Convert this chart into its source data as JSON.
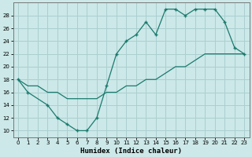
{
  "xlabel": "Humidex (Indice chaleur)",
  "xlim": [
    -0.5,
    23.5
  ],
  "ylim": [
    9,
    30
  ],
  "xticks": [
    0,
    1,
    2,
    3,
    4,
    5,
    6,
    7,
    8,
    9,
    10,
    11,
    12,
    13,
    14,
    15,
    16,
    17,
    18,
    19,
    20,
    21,
    22,
    23
  ],
  "yticks": [
    10,
    12,
    14,
    16,
    18,
    20,
    22,
    24,
    26,
    28
  ],
  "bg_color": "#cce8e8",
  "grid_color": "#aacfcf",
  "line_color": "#1a7a6e",
  "line1_x": [
    0,
    1,
    3,
    4,
    5,
    6,
    7,
    8,
    9,
    10,
    11,
    12,
    13,
    14,
    15,
    16,
    17,
    18,
    19,
    20,
    21,
    22,
    23
  ],
  "line1_y": [
    18,
    16,
    14,
    12,
    11,
    10,
    10,
    12,
    17,
    22,
    24,
    25,
    27,
    25,
    29,
    29,
    28,
    29,
    29,
    29,
    27,
    23,
    22
  ],
  "line2_x": [
    0,
    1,
    2,
    3,
    4,
    5,
    6,
    7,
    8,
    9,
    10,
    11,
    12,
    13,
    14,
    15,
    16,
    17,
    18,
    19,
    20,
    21,
    22,
    23
  ],
  "line2_y": [
    18,
    17,
    17,
    16,
    16,
    15,
    15,
    15,
    15,
    16,
    16,
    17,
    17,
    18,
    18,
    19,
    20,
    20,
    21,
    22,
    22,
    22,
    22,
    22
  ]
}
